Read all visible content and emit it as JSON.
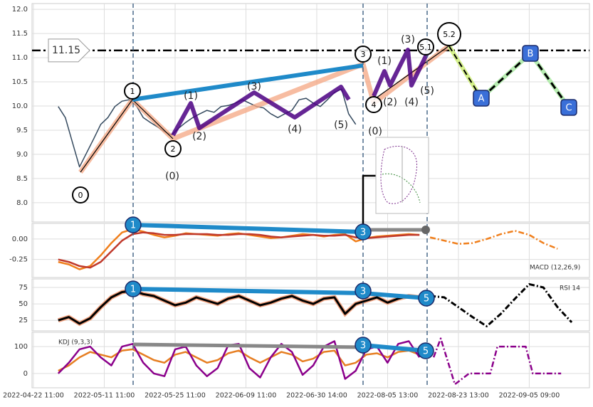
{
  "chart_data": [
    {
      "type": "line",
      "xlim": [
        -0.4,
        157
      ],
      "ylim": [
        7.6,
        12.12
      ],
      "yticks": [
        {
          "value": 8,
          "label": "8.0"
        },
        8.5,
        {
          "value": 9,
          "label": "9.0"
        },
        9.5,
        {
          "value": 10,
          "label": "10.0"
        },
        10.5,
        {
          "value": 11,
          "label": "11.0"
        },
        11.5,
        {
          "value": 12,
          "label": "12.0"
        }
      ],
      "grid": true,
      "hline": 11.15,
      "series": [
        {
          "color": "#34495e",
          "x": [
            7,
            9,
            11,
            13,
            15,
            17,
            19,
            21,
            23,
            25,
            27,
            29,
            31,
            33,
            35,
            37,
            39,
            41,
            43,
            45,
            47,
            49,
            51,
            53,
            55,
            57,
            59,
            61,
            63,
            65,
            67,
            69,
            71,
            73,
            75,
            77,
            79,
            81,
            83,
            85,
            87,
            89,
            91
          ],
          "values": [
            9.99,
            9.76,
            9.25,
            8.74,
            9.03,
            9.32,
            9.62,
            9.76,
            9.99,
            10.1,
            10.13,
            10.01,
            9.76,
            9.66,
            9.57,
            9.47,
            9.4,
            9.54,
            9.66,
            9.76,
            9.84,
            9.91,
            9.87,
            9.99,
            10.01,
            10.06,
            10.13,
            10.06,
            9.99,
            9.96,
            9.84,
            9.76,
            9.84,
            9.91,
            10.13,
            10.16,
            10.06,
            9.99,
            10.13,
            10.28,
            10.35,
            9.84,
            9.62
          ]
        }
      ],
      "wave_labels": [
        "0",
        "1",
        "2",
        "3",
        "4",
        "5.1",
        "5.2",
        "(0)",
        "(1)",
        "(2)",
        "(3)",
        "(4)",
        "(5)",
        "(0)",
        "(1)",
        "(2)",
        "(3)",
        "(4)",
        "(5)"
      ],
      "abc_labels": [
        "A",
        "B",
        "C"
      ]
    },
    {
      "type": "line",
      "label": "MACD (12,26,9)",
      "xlim": [
        -0.4,
        157
      ],
      "ylim": [
        -0.47,
        0.19
      ],
      "yticks": [
        {
          "value": -0.25,
          "label": "-0.25"
        },
        {
          "value": 0,
          "label": "0.00"
        }
      ],
      "grid": true,
      "series": [
        {
          "color": "#f07f1c",
          "x": [
            7,
            10,
            13,
            16,
            19,
            22,
            25,
            28,
            31,
            34,
            37,
            40,
            43,
            46,
            49,
            52,
            55,
            58,
            61,
            64,
            67,
            70,
            73,
            76,
            79,
            82,
            85,
            88,
            91,
            94,
            97,
            100,
            103,
            106,
            109
          ],
          "values": [
            -0.28,
            -0.31,
            -0.37,
            -0.33,
            -0.2,
            -0.05,
            0.08,
            0.12,
            0.09,
            0.05,
            0.02,
            0.04,
            0.07,
            0.06,
            0.05,
            0.04,
            0.06,
            0.07,
            0.05,
            0.03,
            0.01,
            0.02,
            0.04,
            0.06,
            0.05,
            0.03,
            0.05,
            0.06,
            -0.03,
            0.01,
            0.03,
            0.04,
            0.05,
            0.06,
            0.05
          ]
        },
        {
          "color": "#c0392b",
          "x": [
            7,
            10,
            13,
            16,
            19,
            22,
            25,
            28,
            31,
            34,
            37,
            40,
            43,
            46,
            49,
            52,
            55,
            58,
            61,
            64,
            67,
            70,
            73,
            76,
            79,
            82,
            85,
            88,
            91,
            94,
            97,
            100,
            103,
            106,
            109
          ],
          "values": [
            -0.25,
            -0.28,
            -0.33,
            -0.35,
            -0.28,
            -0.15,
            -0.02,
            0.06,
            0.08,
            0.07,
            0.05,
            0.05,
            0.06,
            0.06,
            0.06,
            0.05,
            0.05,
            0.06,
            0.06,
            0.05,
            0.03,
            0.02,
            0.03,
            0.04,
            0.05,
            0.04,
            0.04,
            0.05,
            0.02,
            0.01,
            0.02,
            0.03,
            0.04,
            0.05,
            0.05
          ]
        },
        {
          "color": "#f07f1c",
          "linestyle": "dash-dot",
          "x": [
            112,
            116,
            120,
            124,
            128,
            132,
            136,
            140,
            144,
            148
          ],
          "values": [
            0.02,
            -0.02,
            -0.06,
            -0.05,
            0,
            0.06,
            0.1,
            0.05,
            -0.05,
            -0.12
          ]
        }
      ],
      "markers": [
        "1",
        "3"
      ]
    },
    {
      "type": "line",
      "label": "RSI 14",
      "xlim": [
        -0.4,
        157
      ],
      "ylim": [
        9,
        88
      ],
      "yticks": [
        25,
        50,
        75
      ],
      "grid": true,
      "series": [
        {
          "color": "#000000",
          "x": [
            7,
            10,
            13,
            16,
            19,
            22,
            25,
            28,
            31,
            34,
            37,
            40,
            43,
            46,
            49,
            52,
            55,
            58,
            61,
            64,
            67,
            70,
            73,
            76,
            79,
            82,
            85,
            88,
            91,
            94,
            97,
            100,
            103,
            106,
            109
          ],
          "values": [
            25,
            30,
            20,
            28,
            45,
            60,
            68,
            70,
            65,
            62,
            55,
            48,
            52,
            60,
            55,
            50,
            58,
            62,
            55,
            48,
            52,
            58,
            62,
            55,
            50,
            58,
            60,
            35,
            50,
            55,
            60,
            52,
            58,
            62,
            60
          ]
        },
        {
          "color": "#000000",
          "linestyle": "dash-dot",
          "x": [
            112,
            116,
            120,
            124,
            128,
            132,
            136,
            140,
            144,
            148,
            152
          ],
          "values": [
            62,
            60,
            45,
            30,
            16,
            35,
            58,
            80,
            75,
            45,
            22
          ]
        }
      ],
      "markers": [
        "1",
        "3",
        "5"
      ]
    },
    {
      "type": "line",
      "label": "KDJ (9,3,3)",
      "xlim": [
        -0.4,
        157
      ],
      "ylim": [
        -53,
        153
      ],
      "yticks": [
        0,
        100
      ],
      "grid": true,
      "xticks": [
        {
          "value": 0,
          "label": "2022-04-22 11:00"
        },
        {
          "value": 20,
          "label": "2022-05-11 11:00"
        },
        {
          "value": 40,
          "label": "2022-05-25 11:00"
        },
        {
          "value": 60,
          "label": "2022-06-09 11:00"
        },
        {
          "value": 80,
          "label": "2022-06-30 14:00"
        },
        {
          "value": 100,
          "label": "2022-08-05 13:00"
        },
        {
          "value": 120,
          "label": "2022-08-23 13:00"
        },
        {
          "value": 140,
          "label": "2022-09-05 09:00"
        }
      ],
      "series": [
        {
          "color": "#e67e22",
          "x": [
            7,
            10,
            13,
            16,
            19,
            22,
            25,
            28,
            31,
            34,
            37,
            40,
            43,
            46,
            49,
            52,
            55,
            58,
            61,
            64,
            67,
            70,
            73,
            76,
            79,
            82,
            85,
            88,
            91,
            94,
            97,
            100,
            103,
            106,
            109
          ],
          "values": [
            10,
            30,
            60,
            80,
            70,
            60,
            85,
            90,
            70,
            50,
            40,
            70,
            80,
            60,
            40,
            50,
            75,
            85,
            60,
            40,
            60,
            80,
            70,
            45,
            55,
            80,
            85,
            30,
            40,
            70,
            75,
            60,
            80,
            85,
            70
          ]
        },
        {
          "color": "#8b008b",
          "x": [
            7,
            10,
            13,
            16,
            19,
            22,
            25,
            28,
            31,
            34,
            37,
            40,
            43,
            46,
            49,
            52,
            55,
            58,
            61,
            64,
            67,
            70,
            73,
            76,
            79,
            82,
            85,
            88,
            91,
            94,
            97,
            100,
            103,
            106,
            109
          ],
          "values": [
            0,
            40,
            90,
            100,
            60,
            30,
            100,
            110,
            40,
            0,
            -10,
            90,
            100,
            30,
            -10,
            20,
            105,
            110,
            20,
            -15,
            60,
            110,
            80,
            -5,
            30,
            100,
            120,
            -20,
            10,
            90,
            100,
            40,
            110,
            120,
            60
          ]
        },
        {
          "color": "#8b008b",
          "linestyle": "dash-dot",
          "x": [
            113,
            115,
            119,
            123,
            129,
            131,
            139,
            141,
            145,
            149
          ],
          "values": [
            60,
            130,
            -40,
            0,
            0,
            100,
            100,
            0,
            0,
            0
          ]
        }
      ],
      "markers": [
        "3",
        "5"
      ]
    }
  ]
}
